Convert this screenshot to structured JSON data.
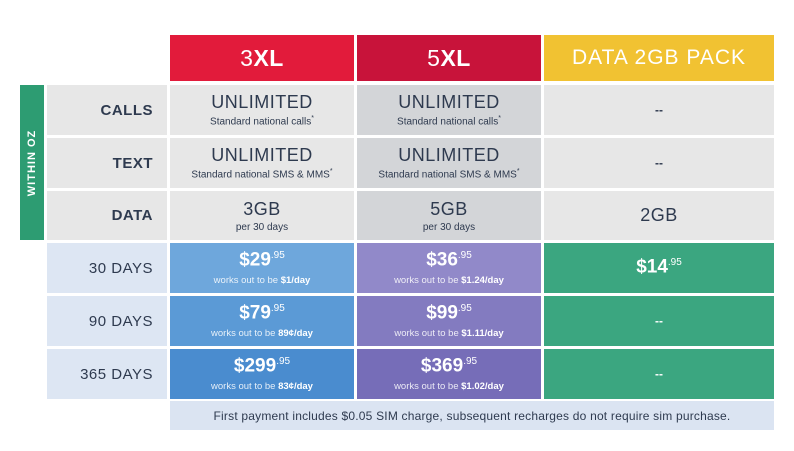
{
  "headers": {
    "plan1": {
      "prefix": "3",
      "suffix": "XL"
    },
    "plan2": {
      "prefix": "5",
      "suffix": "XL"
    },
    "plan3": "DATA 2GB PACK"
  },
  "side_tab": "WITHIN OZ",
  "feature_rows": [
    {
      "label": "CALLS",
      "plan1": {
        "main": "UNLIMITED",
        "sub": "Standard national calls",
        "mark": "*"
      },
      "plan2": {
        "main": "UNLIMITED",
        "sub": "Standard national calls",
        "mark": "*"
      },
      "plan3": "--"
    },
    {
      "label": "TEXT",
      "plan1": {
        "main": "UNLIMITED",
        "sub": "Standard national SMS & MMS",
        "mark": "*"
      },
      "plan2": {
        "main": "UNLIMITED",
        "sub": "Standard national SMS & MMS",
        "mark": "*"
      },
      "plan3": "--"
    },
    {
      "label": "DATA",
      "plan1": {
        "main": "3GB",
        "sub": "per 30 days"
      },
      "plan2": {
        "main": "5GB",
        "sub": "per 30 days"
      },
      "plan3": "2GB"
    }
  ],
  "price_rows": [
    {
      "label": "30 DAYS",
      "plan1": {
        "dollars": "$29",
        "cents": ".95",
        "pre": "works out to be ",
        "per": "$1/day"
      },
      "plan2": {
        "dollars": "$36",
        "cents": ".95",
        "pre": "works out to be ",
        "per": "$1.24/day"
      },
      "plan3": {
        "dollars": "$14",
        "cents": ".95"
      }
    },
    {
      "label": "90 DAYS",
      "plan1": {
        "dollars": "$79",
        "cents": ".95",
        "pre": "works out to be ",
        "per": "89¢/day"
      },
      "plan2": {
        "dollars": "$99",
        "cents": ".95",
        "pre": "works out to be ",
        "per": "$1.11/day"
      },
      "plan3": "--"
    },
    {
      "label": "365 DAYS",
      "plan1": {
        "dollars": "$299",
        "cents": ".95",
        "pre": "works out to be ",
        "per": "83¢/day"
      },
      "plan2": {
        "dollars": "$369",
        "cents": ".95",
        "pre": "works out to be ",
        "per": "$1.02/day"
      },
      "plan3": "--"
    }
  ],
  "footnote": "First payment includes $0.05 SIM charge, subsequent recharges do not require sim purchase.",
  "colors": {
    "plan1_header": "#e21b3b",
    "plan2_header": "#c8133a",
    "plan3_header": "#f1c232",
    "side_tab": "#2d9c72",
    "plan3_price": "#3ba680",
    "plan1_price_rows": [
      "#6ea7dc",
      "#5b9ad6",
      "#4a8ccf"
    ],
    "plan2_price_rows": [
      "#9189c9",
      "#837bc0",
      "#766db8"
    ]
  }
}
